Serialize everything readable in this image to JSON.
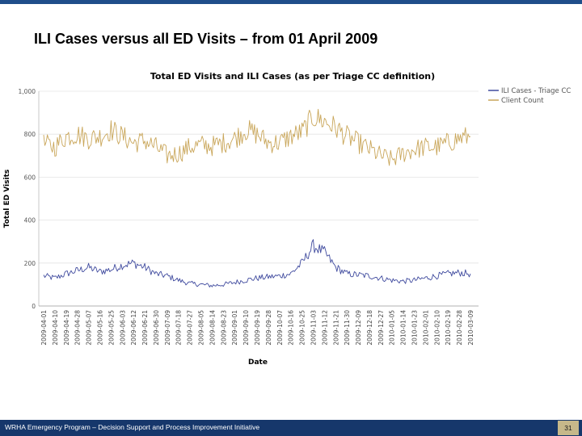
{
  "slide": {
    "title": "ILI Cases versus all ED Visits – from 01 April 2009",
    "footer": "WRHA Emergency Program – Decision Support and Process Improvement Initiative",
    "page_number": "31"
  },
  "colors": {
    "top_bar": "#1f4e8a",
    "footer_bg": "#16376b",
    "page_box": "#c6b88a",
    "ili": "#3f4a9e",
    "client": "#c9a65a"
  },
  "chart_data": {
    "type": "line",
    "title": "Total ED Visits and ILI Cases (as per Triage CC definition)",
    "xlabel": "Date",
    "ylabel": "Total ED Visits",
    "ylim": [
      0,
      1000
    ],
    "yticks": [
      "0",
      "200",
      "400",
      "600",
      "800",
      "1,000"
    ],
    "xticks": [
      "2009-04-01",
      "2009-04-10",
      "2009-04-19",
      "2009-04-28",
      "2009-05-07",
      "2009-05-16",
      "2009-05-25",
      "2009-06-03",
      "2009-06-12",
      "2009-06-21",
      "2009-06-30",
      "2009-07-09",
      "2009-07-18",
      "2009-07-27",
      "2009-08-05",
      "2009-08-14",
      "2009-08-23",
      "2009-09-01",
      "2009-09-10",
      "2009-09-19",
      "2009-09-28",
      "2009-10-07",
      "2009-10-16",
      "2009-10-25",
      "2009-11-03",
      "2009-11-12",
      "2009-11-21",
      "2009-11-30",
      "2009-12-09",
      "2009-12-18",
      "2009-12-27",
      "2010-01-05",
      "2010-01-14",
      "2010-01-23",
      "2010-02-01",
      "2010-02-10",
      "2010-02-19",
      "2010-02-28",
      "2010-03-09"
    ],
    "interval_days": 9,
    "legend": "top-right",
    "series": [
      {
        "name": "ILI Cases - Triage CC",
        "color": "#3f4a9e",
        "values": [
          140,
          130,
          150,
          165,
          180,
          160,
          170,
          190,
          200,
          180,
          150,
          140,
          120,
          105,
          100,
          95,
          100,
          110,
          120,
          130,
          135,
          140,
          150,
          200,
          280,
          250,
          180,
          150,
          145,
          140,
          130,
          120,
          115,
          120,
          130,
          140,
          150,
          155,
          150
        ]
      },
      {
        "name": "Client Count",
        "color": "#c9a65a",
        "values": [
          755,
          740,
          790,
          800,
          780,
          790,
          820,
          790,
          760,
          770,
          740,
          700,
          710,
          740,
          750,
          745,
          760,
          780,
          820,
          800,
          760,
          760,
          790,
          810,
          880,
          860,
          830,
          790,
          760,
          730,
          700,
          680,
          710,
          730,
          740,
          740,
          760,
          780,
          790
        ]
      }
    ]
  }
}
